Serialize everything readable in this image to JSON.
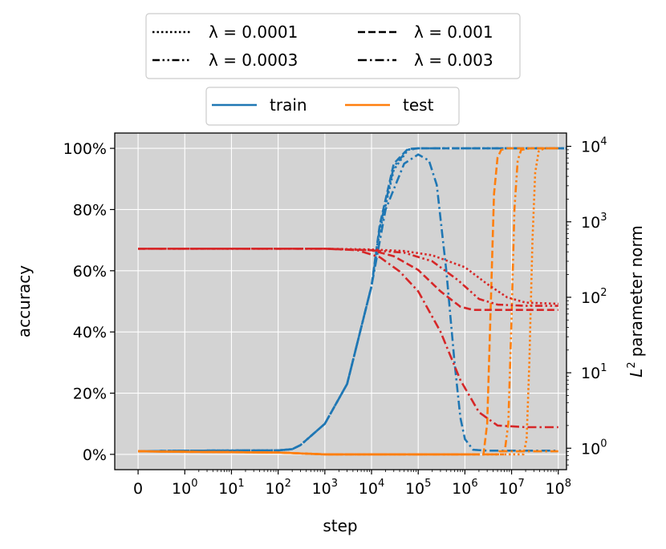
{
  "chart_data": {
    "type": "line",
    "xlabel": "step",
    "ylabel": "accuracy",
    "y2label": "parameter norm",
    "y2label_math": "L",
    "y2label_sup": "2",
    "x_scale": "symlog",
    "y_scale": "linear",
    "y2_scale": "log",
    "xlim": [
      -0.5,
      150000000
    ],
    "ylim": [
      -0.05,
      1.05
    ],
    "y2lim": [
      0.52,
      15000
    ],
    "grid": true,
    "background": "#d3d3d3",
    "x_ticks": [
      {
        "value": 0,
        "label": "0"
      },
      {
        "value": 1,
        "base": "10",
        "exp": "0"
      },
      {
        "value": 10,
        "base": "10",
        "exp": "1"
      },
      {
        "value": 100,
        "base": "10",
        "exp": "2"
      },
      {
        "value": 1000,
        "base": "10",
        "exp": "3"
      },
      {
        "value": 10000,
        "base": "10",
        "exp": "4"
      },
      {
        "value": 100000,
        "base": "10",
        "exp": "5"
      },
      {
        "value": 1000000,
        "base": "10",
        "exp": "6"
      },
      {
        "value": 10000000,
        "base": "10",
        "exp": "7"
      },
      {
        "value": 100000000,
        "base": "10",
        "exp": "8"
      }
    ],
    "y_ticks": [
      {
        "value": 0,
        "label": "0%"
      },
      {
        "value": 0.2,
        "label": "20%"
      },
      {
        "value": 0.4,
        "label": "40%"
      },
      {
        "value": 0.6,
        "label": "60%"
      },
      {
        "value": 0.8,
        "label": "80%"
      },
      {
        "value": 1.0,
        "label": "100%"
      }
    ],
    "y2_ticks": [
      {
        "value": 1,
        "base": "10",
        "exp": "0"
      },
      {
        "value": 10,
        "base": "10",
        "exp": "1"
      },
      {
        "value": 100,
        "base": "10",
        "exp": "2"
      },
      {
        "value": 1000,
        "base": "10",
        "exp": "3"
      },
      {
        "value": 10000,
        "base": "10",
        "exp": "4"
      }
    ],
    "colors": {
      "train": "#1f77b4",
      "test": "#ff7f0e",
      "norm": "#d62728"
    },
    "legend_lambda": [
      {
        "label": "λ = 0.0001",
        "dash": "dotted"
      },
      {
        "label": "λ = 0.001",
        "dash": "dashed"
      },
      {
        "label": "λ = 0.0003",
        "dash": "dashdotdot"
      },
      {
        "label": "λ = 0.003",
        "dash": "dashdot"
      }
    ],
    "legend_split": [
      {
        "label": "train",
        "color": "#1f77b4"
      },
      {
        "label": "test",
        "color": "#ff7f0e"
      }
    ],
    "series": [
      {
        "metric": "train",
        "axis": "left",
        "dash": "dotted",
        "x": [
          0,
          1,
          100,
          200,
          300,
          1000,
          3000,
          10000,
          15000,
          30000,
          60000,
          100000,
          150000000
        ],
        "y": [
          0.01,
          0.012,
          0.013,
          0.017,
          0.03,
          0.1,
          0.23,
          0.55,
          0.73,
          0.93,
          0.995,
          1.0,
          1.0
        ]
      },
      {
        "metric": "train",
        "axis": "left",
        "dash": "dashdotdot",
        "x": [
          0,
          1,
          100,
          200,
          300,
          1000,
          3000,
          10000,
          15000,
          30000,
          60000,
          100000,
          150000000
        ],
        "y": [
          0.01,
          0.012,
          0.013,
          0.017,
          0.03,
          0.1,
          0.23,
          0.55,
          0.74,
          0.94,
          0.996,
          1.0,
          1.0
        ]
      },
      {
        "metric": "train",
        "axis": "left",
        "dash": "dashed",
        "x": [
          0,
          1,
          100,
          200,
          300,
          1000,
          3000,
          10000,
          15000,
          30000,
          60000,
          100000,
          150000000
        ],
        "y": [
          0.01,
          0.012,
          0.013,
          0.017,
          0.03,
          0.1,
          0.23,
          0.55,
          0.75,
          0.95,
          0.998,
          1.0,
          1.0
        ]
      },
      {
        "metric": "train",
        "axis": "left",
        "dash": "dashdot",
        "x": [
          0,
          1,
          100,
          200,
          300,
          1000,
          3000,
          10000,
          20000,
          50000,
          100000,
          170000,
          250000,
          400000,
          600000,
          800000,
          1000000,
          1500000,
          3000000,
          100000000
        ],
        "y": [
          0.01,
          0.012,
          0.013,
          0.017,
          0.03,
          0.1,
          0.23,
          0.55,
          0.8,
          0.95,
          0.98,
          0.96,
          0.88,
          0.6,
          0.3,
          0.12,
          0.05,
          0.015,
          0.012,
          0.012
        ]
      },
      {
        "metric": "test",
        "axis": "left",
        "dash": "solid",
        "x": [
          0,
          1,
          10,
          100,
          300,
          1000,
          1000000
        ],
        "y": [
          0.01,
          0.008,
          0.007,
          0.006,
          0.003,
          0.0,
          0.0
        ]
      },
      {
        "metric": "test",
        "axis": "left",
        "dash": "dotted",
        "x": [
          0,
          100,
          1000,
          18000000,
          21000000,
          24000000,
          28000000,
          32000000,
          38000000,
          50000000,
          100000000
        ],
        "y": [
          0.01,
          0.006,
          0.0,
          0.0,
          0.05,
          0.3,
          0.7,
          0.92,
          0.99,
          1.0,
          1.0
        ]
      },
      {
        "metric": "test",
        "axis": "left",
        "dash": "dashdotdot",
        "x": [
          0,
          100,
          1000,
          7000000,
          8500000,
          10000000,
          11500000,
          13500000,
          16000000,
          25000000,
          100000000
        ],
        "y": [
          0.01,
          0.006,
          0.0,
          0.0,
          0.1,
          0.45,
          0.8,
          0.96,
          0.995,
          1.0,
          1.0
        ]
      },
      {
        "metric": "test",
        "axis": "left",
        "dash": "dashed",
        "x": [
          0,
          100,
          1000,
          2500000,
          3000000,
          3600000,
          4200000,
          5000000,
          6000000,
          8000000,
          100000000
        ],
        "y": [
          0.01,
          0.006,
          0.0,
          0.0,
          0.1,
          0.5,
          0.85,
          0.97,
          0.995,
          1.0,
          1.0
        ]
      },
      {
        "metric": "test",
        "axis": "left",
        "dash": "dashdot",
        "x": [
          0,
          100,
          1000,
          5000000,
          5500000,
          100000000
        ],
        "y": [
          0.01,
          0.006,
          0.0,
          0.0,
          0.01,
          0.01
        ]
      },
      {
        "metric": "norm",
        "axis": "right",
        "dash": "dotted",
        "x": [
          0,
          1000,
          10000,
          50000,
          200000,
          1000000,
          3000000,
          8000000,
          20000000,
          100000000
        ],
        "y": [
          440,
          440,
          430,
          410,
          360,
          250,
          150,
          100,
          85,
          82
        ]
      },
      {
        "metric": "norm",
        "axis": "right",
        "dash": "dashdotdot",
        "x": [
          0,
          1000,
          10000,
          50000,
          200000,
          700000,
          2000000,
          5000000,
          20000000,
          100000000
        ],
        "y": [
          440,
          440,
          420,
          390,
          300,
          170,
          95,
          80,
          77,
          77
        ]
      },
      {
        "metric": "norm",
        "axis": "right",
        "dash": "dashed",
        "x": [
          0,
          1000,
          10000,
          30000,
          100000,
          300000,
          800000,
          1500000,
          3000000,
          100000000
        ],
        "y": [
          440,
          440,
          420,
          350,
          230,
          120,
          75,
          68,
          68,
          68
        ]
      },
      {
        "metric": "norm",
        "axis": "right",
        "dash": "dashdot",
        "x": [
          0,
          1000,
          5000,
          15000,
          40000,
          100000,
          300000,
          800000,
          2000000,
          5000000,
          20000000,
          100000000
        ],
        "y": [
          440,
          440,
          420,
          340,
          220,
          120,
          35,
          8,
          3,
          2,
          1.9,
          1.9
        ]
      }
    ]
  }
}
